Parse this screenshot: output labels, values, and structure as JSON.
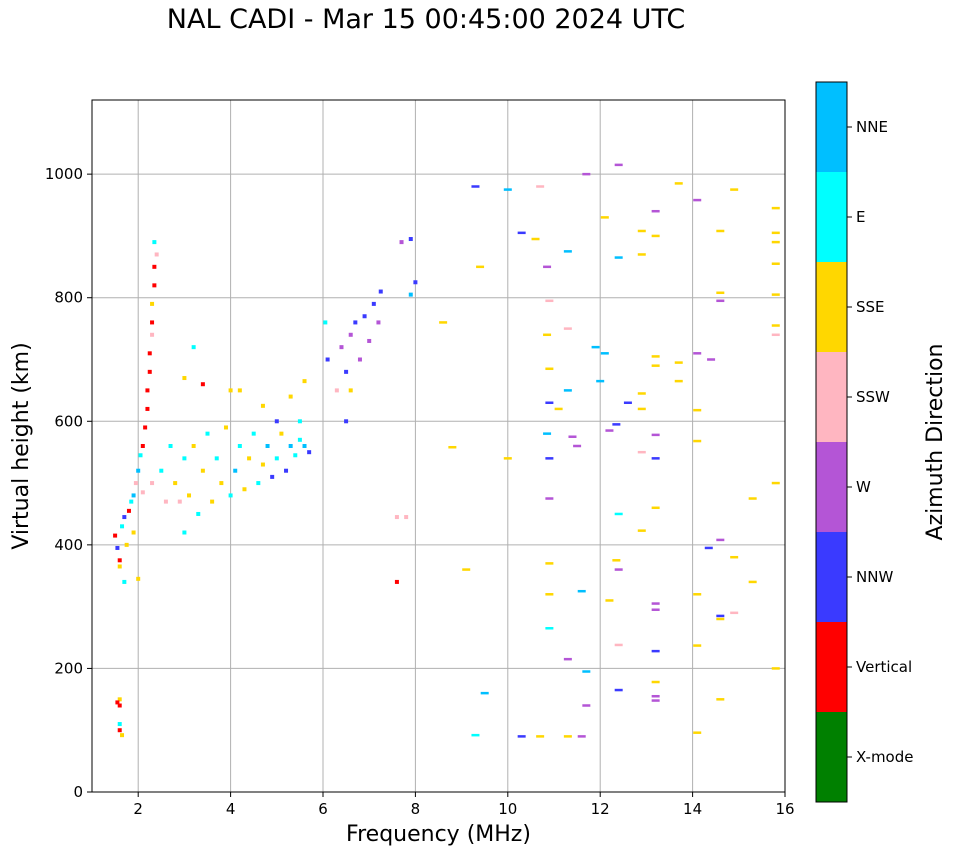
{
  "chart_data": {
    "type": "scatter",
    "title": "NAL CADI - Mar 15 00:45:00 2024 UTC",
    "xlabel": "Frequency (MHz)",
    "ylabel": "Virtual height (km)",
    "xlim": [
      1,
      16
    ],
    "ylim": [
      0,
      1120
    ],
    "xticks": [
      2,
      4,
      6,
      8,
      10,
      12,
      14,
      16
    ],
    "yticks": [
      0,
      200,
      400,
      600,
      800,
      1000
    ],
    "grid": true,
    "colorbar": {
      "label": "Azimuth Direction",
      "categories": [
        {
          "name": "X-mode",
          "color": "#008000"
        },
        {
          "name": "Vertical",
          "color": "#ff0000"
        },
        {
          "name": "NNW",
          "color": "#3a3aff"
        },
        {
          "name": "W",
          "color": "#b455d6"
        },
        {
          "name": "SSW",
          "color": "#ffb6c1"
        },
        {
          "name": "SSE",
          "color": "#ffd700"
        },
        {
          "name": "E",
          "color": "#00ffff"
        },
        {
          "name": "NNE",
          "color": "#00bfff"
        }
      ]
    },
    "points": [
      {
        "f": 1.6,
        "h": 140,
        "c": "Vertical"
      },
      {
        "f": 1.6,
        "h": 150,
        "c": "SSE"
      },
      {
        "f": 1.55,
        "h": 145,
        "c": "Vertical"
      },
      {
        "f": 1.6,
        "h": 100,
        "c": "Vertical"
      },
      {
        "f": 1.6,
        "h": 110,
        "c": "E"
      },
      {
        "f": 1.65,
        "h": 92,
        "c": "SSE"
      },
      {
        "f": 1.5,
        "h": 415,
        "c": "Vertical"
      },
      {
        "f": 1.55,
        "h": 395,
        "c": "NNW"
      },
      {
        "f": 1.6,
        "h": 375,
        "c": "Vertical"
      },
      {
        "f": 1.65,
        "h": 430,
        "c": "E"
      },
      {
        "f": 1.7,
        "h": 445,
        "c": "NNW"
      },
      {
        "f": 1.75,
        "h": 400,
        "c": "SSE"
      },
      {
        "f": 1.8,
        "h": 455,
        "c": "Vertical"
      },
      {
        "f": 1.85,
        "h": 470,
        "c": "E"
      },
      {
        "f": 1.7,
        "h": 340,
        "c": "E"
      },
      {
        "f": 1.9,
        "h": 480,
        "c": "NNE"
      },
      {
        "f": 1.95,
        "h": 500,
        "c": "SSW"
      },
      {
        "f": 2.0,
        "h": 520,
        "c": "NNE"
      },
      {
        "f": 2.0,
        "h": 345,
        "c": "SSE"
      },
      {
        "f": 1.6,
        "h": 365,
        "c": "SSE"
      },
      {
        "f": 1.9,
        "h": 420,
        "c": "SSE"
      },
      {
        "f": 2.05,
        "h": 545,
        "c": "E"
      },
      {
        "f": 2.1,
        "h": 560,
        "c": "Vertical"
      },
      {
        "f": 2.15,
        "h": 590,
        "c": "Vertical"
      },
      {
        "f": 2.2,
        "h": 620,
        "c": "Vertical"
      },
      {
        "f": 2.2,
        "h": 650,
        "c": "Vertical"
      },
      {
        "f": 2.25,
        "h": 680,
        "c": "Vertical"
      },
      {
        "f": 2.25,
        "h": 710,
        "c": "Vertical"
      },
      {
        "f": 2.3,
        "h": 740,
        "c": "SSW"
      },
      {
        "f": 2.3,
        "h": 760,
        "c": "Vertical"
      },
      {
        "f": 2.3,
        "h": 790,
        "c": "SSE"
      },
      {
        "f": 2.35,
        "h": 820,
        "c": "Vertical"
      },
      {
        "f": 2.35,
        "h": 850,
        "c": "Vertical"
      },
      {
        "f": 2.35,
        "h": 890,
        "c": "E"
      },
      {
        "f": 2.4,
        "h": 870,
        "c": "SSW"
      },
      {
        "f": 2.1,
        "h": 485,
        "c": "SSW"
      },
      {
        "f": 2.3,
        "h": 500,
        "c": "SSW"
      },
      {
        "f": 2.5,
        "h": 520,
        "c": "E"
      },
      {
        "f": 2.6,
        "h": 470,
        "c": "SSW"
      },
      {
        "f": 2.7,
        "h": 560,
        "c": "E"
      },
      {
        "f": 2.8,
        "h": 500,
        "c": "SSE"
      },
      {
        "f": 2.9,
        "h": 470,
        "c": "SSW"
      },
      {
        "f": 3.0,
        "h": 540,
        "c": "E"
      },
      {
        "f": 3.0,
        "h": 420,
        "c": "E"
      },
      {
        "f": 3.1,
        "h": 480,
        "c": "SSE"
      },
      {
        "f": 3.2,
        "h": 560,
        "c": "SSE"
      },
      {
        "f": 3.3,
        "h": 450,
        "c": "E"
      },
      {
        "f": 3.4,
        "h": 520,
        "c": "SSE"
      },
      {
        "f": 3.5,
        "h": 580,
        "c": "E"
      },
      {
        "f": 3.6,
        "h": 470,
        "c": "SSE"
      },
      {
        "f": 3.7,
        "h": 540,
        "c": "E"
      },
      {
        "f": 3.8,
        "h": 500,
        "c": "SSE"
      },
      {
        "f": 3.9,
        "h": 590,
        "c": "SSE"
      },
      {
        "f": 4.0,
        "h": 480,
        "c": "E"
      },
      {
        "f": 4.1,
        "h": 520,
        "c": "NNE"
      },
      {
        "f": 4.2,
        "h": 560,
        "c": "E"
      },
      {
        "f": 4.3,
        "h": 490,
        "c": "SSE"
      },
      {
        "f": 4.4,
        "h": 540,
        "c": "SSE"
      },
      {
        "f": 4.5,
        "h": 580,
        "c": "E"
      },
      {
        "f": 4.6,
        "h": 500,
        "c": "E"
      },
      {
        "f": 4.7,
        "h": 530,
        "c": "SSE"
      },
      {
        "f": 4.8,
        "h": 560,
        "c": "NNE"
      },
      {
        "f": 4.9,
        "h": 510,
        "c": "NNW"
      },
      {
        "f": 5.0,
        "h": 540,
        "c": "E"
      },
      {
        "f": 5.1,
        "h": 580,
        "c": "SSE"
      },
      {
        "f": 5.2,
        "h": 520,
        "c": "NNW"
      },
      {
        "f": 5.3,
        "h": 560,
        "c": "NNE"
      },
      {
        "f": 5.4,
        "h": 545,
        "c": "E"
      },
      {
        "f": 5.5,
        "h": 570,
        "c": "E"
      },
      {
        "f": 5.6,
        "h": 560,
        "c": "NNE"
      },
      {
        "f": 5.7,
        "h": 550,
        "c": "NNW"
      },
      {
        "f": 5.3,
        "h": 640,
        "c": "SSE"
      },
      {
        "f": 3.0,
        "h": 670,
        "c": "SSE"
      },
      {
        "f": 3.2,
        "h": 720,
        "c": "E"
      },
      {
        "f": 3.4,
        "h": 660,
        "c": "Vertical"
      },
      {
        "f": 4.0,
        "h": 650,
        "c": "SSE"
      },
      {
        "f": 4.2,
        "h": 650,
        "c": "SSE"
      },
      {
        "f": 4.7,
        "h": 625,
        "c": "SSE"
      },
      {
        "f": 5.6,
        "h": 665,
        "c": "SSE"
      },
      {
        "f": 5.0,
        "h": 600,
        "c": "NNW"
      },
      {
        "f": 5.5,
        "h": 600,
        "c": "E"
      },
      {
        "f": 6.05,
        "h": 760,
        "c": "E"
      },
      {
        "f": 6.1,
        "h": 700,
        "c": "NNW"
      },
      {
        "f": 6.3,
        "h": 650,
        "c": "SSW"
      },
      {
        "f": 6.4,
        "h": 720,
        "c": "W"
      },
      {
        "f": 6.5,
        "h": 680,
        "c": "NNW"
      },
      {
        "f": 6.6,
        "h": 740,
        "c": "W"
      },
      {
        "f": 6.7,
        "h": 760,
        "c": "NNW"
      },
      {
        "f": 6.8,
        "h": 700,
        "c": "W"
      },
      {
        "f": 6.9,
        "h": 770,
        "c": "NNW"
      },
      {
        "f": 7.0,
        "h": 730,
        "c": "W"
      },
      {
        "f": 7.1,
        "h": 790,
        "c": "NNW"
      },
      {
        "f": 7.2,
        "h": 760,
        "c": "W"
      },
      {
        "f": 7.25,
        "h": 810,
        "c": "NNW"
      },
      {
        "f": 6.5,
        "h": 600,
        "c": "NNW"
      },
      {
        "f": 6.6,
        "h": 650,
        "c": "SSE"
      },
      {
        "f": 7.6,
        "h": 445,
        "c": "SSW"
      },
      {
        "f": 7.8,
        "h": 445,
        "c": "SSW"
      },
      {
        "f": 7.6,
        "h": 340,
        "c": "Vertical"
      },
      {
        "f": 7.7,
        "h": 890,
        "c": "W"
      },
      {
        "f": 7.9,
        "h": 895,
        "c": "NNW"
      },
      {
        "f": 7.9,
        "h": 805,
        "c": "NNE"
      },
      {
        "f": 8.0,
        "h": 825,
        "c": "NNW"
      },
      {
        "f": 8.6,
        "h": 760,
        "c": "SSE"
      },
      {
        "f": 8.8,
        "h": 558,
        "c": "SSE"
      },
      {
        "f": 9.1,
        "h": 360,
        "c": "SSE"
      },
      {
        "f": 9.3,
        "h": 980,
        "c": "NNW"
      },
      {
        "f": 9.4,
        "h": 850,
        "c": "SSE"
      },
      {
        "f": 9.5,
        "h": 160,
        "c": "NNE"
      },
      {
        "f": 9.3,
        "h": 92,
        "c": "E"
      },
      {
        "f": 10.0,
        "h": 975,
        "c": "NNE"
      },
      {
        "f": 10.0,
        "h": 540,
        "c": "SSE"
      },
      {
        "f": 10.3,
        "h": 905,
        "c": "NNW"
      },
      {
        "f": 10.3,
        "h": 90,
        "c": "NNW"
      },
      {
        "f": 10.6,
        "h": 895,
        "c": "SSE"
      },
      {
        "f": 10.7,
        "h": 90,
        "c": "SSE"
      },
      {
        "f": 10.7,
        "h": 980,
        "c": "SSW"
      },
      {
        "f": 10.85,
        "h": 850,
        "c": "W"
      },
      {
        "f": 10.9,
        "h": 795,
        "c": "SSW"
      },
      {
        "f": 10.85,
        "h": 740,
        "c": "SSE"
      },
      {
        "f": 10.9,
        "h": 685,
        "c": "SSE"
      },
      {
        "f": 10.9,
        "h": 630,
        "c": "NNW"
      },
      {
        "f": 10.85,
        "h": 580,
        "c": "NNE"
      },
      {
        "f": 10.9,
        "h": 540,
        "c": "NNW"
      },
      {
        "f": 10.9,
        "h": 475,
        "c": "W"
      },
      {
        "f": 10.9,
        "h": 370,
        "c": "SSE"
      },
      {
        "f": 10.9,
        "h": 320,
        "c": "SSE"
      },
      {
        "f": 10.9,
        "h": 265,
        "c": "E"
      },
      {
        "f": 11.1,
        "h": 620,
        "c": "SSE"
      },
      {
        "f": 11.3,
        "h": 875,
        "c": "NNE"
      },
      {
        "f": 11.3,
        "h": 750,
        "c": "SSW"
      },
      {
        "f": 11.3,
        "h": 650,
        "c": "NNE"
      },
      {
        "f": 11.4,
        "h": 575,
        "c": "W"
      },
      {
        "f": 11.5,
        "h": 560,
        "c": "W"
      },
      {
        "f": 11.6,
        "h": 325,
        "c": "NNE"
      },
      {
        "f": 11.3,
        "h": 215,
        "c": "W"
      },
      {
        "f": 11.7,
        "h": 195,
        "c": "NNE"
      },
      {
        "f": 11.7,
        "h": 140,
        "c": "W"
      },
      {
        "f": 11.3,
        "h": 90,
        "c": "SSE"
      },
      {
        "f": 11.6,
        "h": 90,
        "c": "W"
      },
      {
        "f": 11.7,
        "h": 1000,
        "c": "W"
      },
      {
        "f": 11.9,
        "h": 720,
        "c": "NNE"
      },
      {
        "f": 12.0,
        "h": 665,
        "c": "NNE"
      },
      {
        "f": 12.1,
        "h": 710,
        "c": "NNE"
      },
      {
        "f": 12.2,
        "h": 585,
        "c": "W"
      },
      {
        "f": 12.1,
        "h": 930,
        "c": "SSE"
      },
      {
        "f": 12.4,
        "h": 1015,
        "c": "W"
      },
      {
        "f": 12.4,
        "h": 865,
        "c": "NNE"
      },
      {
        "f": 12.35,
        "h": 595,
        "c": "NNW"
      },
      {
        "f": 12.4,
        "h": 450,
        "c": "E"
      },
      {
        "f": 12.35,
        "h": 375,
        "c": "SSE"
      },
      {
        "f": 12.4,
        "h": 360,
        "c": "W"
      },
      {
        "f": 12.2,
        "h": 310,
        "c": "SSE"
      },
      {
        "f": 12.4,
        "h": 238,
        "c": "SSW"
      },
      {
        "f": 12.4,
        "h": 165,
        "c": "NNW"
      },
      {
        "f": 12.6,
        "h": 630,
        "c": "NNW"
      },
      {
        "f": 12.9,
        "h": 908,
        "c": "SSE"
      },
      {
        "f": 12.9,
        "h": 870,
        "c": "SSE"
      },
      {
        "f": 12.9,
        "h": 645,
        "c": "SSE"
      },
      {
        "f": 12.9,
        "h": 620,
        "c": "SSE"
      },
      {
        "f": 12.9,
        "h": 550,
        "c": "SSW"
      },
      {
        "f": 12.9,
        "h": 423,
        "c": "SSE"
      },
      {
        "f": 13.2,
        "h": 940,
        "c": "W"
      },
      {
        "f": 13.2,
        "h": 900,
        "c": "SSE"
      },
      {
        "f": 13.2,
        "h": 705,
        "c": "SSE"
      },
      {
        "f": 13.2,
        "h": 690,
        "c": "SSE"
      },
      {
        "f": 13.2,
        "h": 578,
        "c": "W"
      },
      {
        "f": 13.2,
        "h": 540,
        "c": "NNW"
      },
      {
        "f": 13.2,
        "h": 460,
        "c": "SSE"
      },
      {
        "f": 13.2,
        "h": 305,
        "c": "W"
      },
      {
        "f": 13.2,
        "h": 295,
        "c": "W"
      },
      {
        "f": 13.2,
        "h": 228,
        "c": "NNW"
      },
      {
        "f": 13.2,
        "h": 178,
        "c": "SSE"
      },
      {
        "f": 13.2,
        "h": 155,
        "c": "W"
      },
      {
        "f": 13.2,
        "h": 148,
        "c": "W"
      },
      {
        "f": 13.7,
        "h": 985,
        "c": "SSE"
      },
      {
        "f": 13.7,
        "h": 695,
        "c": "SSE"
      },
      {
        "f": 13.7,
        "h": 665,
        "c": "SSE"
      },
      {
        "f": 14.1,
        "h": 958,
        "c": "W"
      },
      {
        "f": 14.1,
        "h": 710,
        "c": "W"
      },
      {
        "f": 14.1,
        "h": 618,
        "c": "SSE"
      },
      {
        "f": 14.1,
        "h": 568,
        "c": "SSE"
      },
      {
        "f": 14.1,
        "h": 320,
        "c": "SSE"
      },
      {
        "f": 14.1,
        "h": 237,
        "c": "SSE"
      },
      {
        "f": 14.1,
        "h": 96,
        "c": "SSE"
      },
      {
        "f": 14.4,
        "h": 700,
        "c": "W"
      },
      {
        "f": 14.35,
        "h": 395,
        "c": "NNW"
      },
      {
        "f": 14.6,
        "h": 908,
        "c": "SSE"
      },
      {
        "f": 14.6,
        "h": 808,
        "c": "SSE"
      },
      {
        "f": 14.6,
        "h": 795,
        "c": "W"
      },
      {
        "f": 14.6,
        "h": 408,
        "c": "W"
      },
      {
        "f": 14.6,
        "h": 285,
        "c": "NNW"
      },
      {
        "f": 14.6,
        "h": 280,
        "c": "SSE"
      },
      {
        "f": 14.6,
        "h": 150,
        "c": "SSE"
      },
      {
        "f": 14.9,
        "h": 975,
        "c": "SSE"
      },
      {
        "f": 14.9,
        "h": 380,
        "c": "SSE"
      },
      {
        "f": 14.9,
        "h": 290,
        "c": "SSW"
      },
      {
        "f": 15.3,
        "h": 475,
        "c": "SSE"
      },
      {
        "f": 15.3,
        "h": 340,
        "c": "SSE"
      },
      {
        "f": 15.8,
        "h": 945,
        "c": "SSE"
      },
      {
        "f": 15.8,
        "h": 905,
        "c": "SSE"
      },
      {
        "f": 15.8,
        "h": 890,
        "c": "SSE"
      },
      {
        "f": 15.8,
        "h": 855,
        "c": "SSE"
      },
      {
        "f": 15.8,
        "h": 805,
        "c": "SSE"
      },
      {
        "f": 15.8,
        "h": 755,
        "c": "SSE"
      },
      {
        "f": 15.8,
        "h": 740,
        "c": "SSW"
      },
      {
        "f": 15.8,
        "h": 500,
        "c": "SSE"
      },
      {
        "f": 15.8,
        "h": 200,
        "c": "SSE"
      }
    ]
  }
}
